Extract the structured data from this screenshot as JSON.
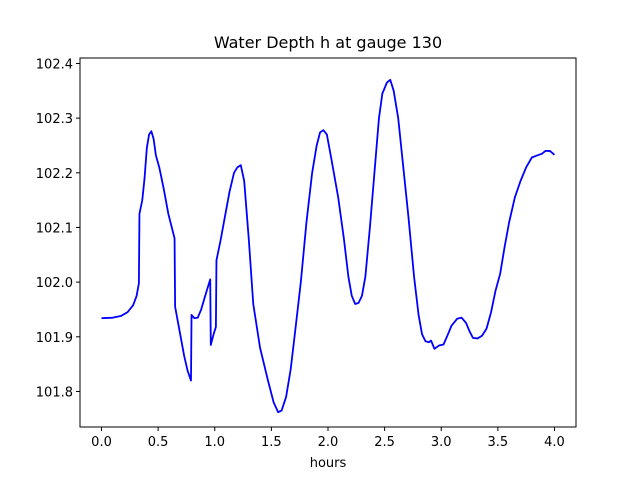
{
  "chart_data": {
    "type": "line",
    "title": "Water Depth h at gauge 130",
    "xlabel": "hours",
    "ylabel": "",
    "xlim": [
      -0.19,
      4.19
    ],
    "ylim": [
      101.735,
      102.41
    ],
    "xticks": [
      0.0,
      0.5,
      1.0,
      1.5,
      2.0,
      2.5,
      3.0,
      3.5,
      4.0
    ],
    "xtick_labels": [
      "0.0",
      "0.5",
      "1.0",
      "1.5",
      "2.0",
      "2.5",
      "3.0",
      "3.5",
      "4.0"
    ],
    "yticks": [
      101.8,
      101.9,
      102.0,
      102.1,
      102.2,
      102.3,
      102.4
    ],
    "ytick_labels": [
      "101.8",
      "101.9",
      "102.0",
      "102.1",
      "102.2",
      "102.3",
      "102.4"
    ],
    "grid": false,
    "series": [
      {
        "color": "#0000ff",
        "points": [
          [
            0.0,
            101.934
          ],
          [
            0.1,
            101.935
          ],
          [
            0.17,
            101.938
          ],
          [
            0.23,
            101.945
          ],
          [
            0.28,
            101.958
          ],
          [
            0.31,
            101.975
          ],
          [
            0.33,
            101.998
          ],
          [
            0.335,
            102.125
          ],
          [
            0.36,
            102.15
          ],
          [
            0.38,
            102.19
          ],
          [
            0.4,
            102.245
          ],
          [
            0.42,
            102.27
          ],
          [
            0.44,
            102.276
          ],
          [
            0.46,
            102.262
          ],
          [
            0.48,
            102.232
          ],
          [
            0.51,
            102.21
          ],
          [
            0.55,
            102.17
          ],
          [
            0.59,
            102.125
          ],
          [
            0.645,
            102.08
          ],
          [
            0.65,
            101.955
          ],
          [
            0.69,
            101.91
          ],
          [
            0.73,
            101.865
          ],
          [
            0.76,
            101.838
          ],
          [
            0.79,
            101.82
          ],
          [
            0.795,
            101.94
          ],
          [
            0.82,
            101.934
          ],
          [
            0.85,
            101.935
          ],
          [
            0.88,
            101.95
          ],
          [
            0.92,
            101.978
          ],
          [
            0.96,
            102.005
          ],
          [
            0.965,
            101.885
          ],
          [
            0.99,
            101.905
          ],
          [
            1.01,
            101.918
          ],
          [
            1.015,
            102.04
          ],
          [
            1.05,
            102.075
          ],
          [
            1.09,
            102.12
          ],
          [
            1.13,
            102.165
          ],
          [
            1.17,
            102.2
          ],
          [
            1.2,
            102.21
          ],
          [
            1.23,
            102.214
          ],
          [
            1.26,
            102.185
          ],
          [
            1.3,
            102.08
          ],
          [
            1.34,
            101.96
          ],
          [
            1.4,
            101.88
          ],
          [
            1.47,
            101.82
          ],
          [
            1.52,
            101.78
          ],
          [
            1.56,
            101.762
          ],
          [
            1.59,
            101.765
          ],
          [
            1.63,
            101.79
          ],
          [
            1.67,
            101.84
          ],
          [
            1.71,
            101.91
          ],
          [
            1.76,
            102.0
          ],
          [
            1.81,
            102.11
          ],
          [
            1.86,
            102.2
          ],
          [
            1.9,
            102.25
          ],
          [
            1.93,
            102.274
          ],
          [
            1.96,
            102.278
          ],
          [
            1.99,
            102.27
          ],
          [
            2.03,
            102.225
          ],
          [
            2.09,
            102.155
          ],
          [
            2.14,
            102.08
          ],
          [
            2.18,
            102.01
          ],
          [
            2.21,
            101.975
          ],
          [
            2.24,
            101.96
          ],
          [
            2.27,
            101.962
          ],
          [
            2.3,
            101.975
          ],
          [
            2.33,
            102.01
          ],
          [
            2.37,
            102.1
          ],
          [
            2.41,
            102.2
          ],
          [
            2.45,
            102.3
          ],
          [
            2.48,
            102.345
          ],
          [
            2.52,
            102.365
          ],
          [
            2.55,
            102.37
          ],
          [
            2.58,
            102.35
          ],
          [
            2.62,
            102.3
          ],
          [
            2.66,
            102.22
          ],
          [
            2.71,
            102.12
          ],
          [
            2.76,
            102.01
          ],
          [
            2.8,
            101.94
          ],
          [
            2.83,
            101.905
          ],
          [
            2.86,
            101.892
          ],
          [
            2.89,
            101.89
          ],
          [
            2.91,
            101.893
          ],
          [
            2.94,
            101.878
          ],
          [
            2.98,
            101.884
          ],
          [
            3.02,
            101.886
          ],
          [
            3.05,
            101.9
          ],
          [
            3.09,
            101.92
          ],
          [
            3.14,
            101.933
          ],
          [
            3.18,
            101.935
          ],
          [
            3.22,
            101.925
          ],
          [
            3.25,
            101.91
          ],
          [
            3.28,
            101.898
          ],
          [
            3.32,
            101.897
          ],
          [
            3.36,
            101.902
          ],
          [
            3.4,
            101.915
          ],
          [
            3.44,
            101.945
          ],
          [
            3.48,
            101.985
          ],
          [
            3.52,
            102.015
          ],
          [
            3.56,
            102.065
          ],
          [
            3.6,
            102.11
          ],
          [
            3.65,
            102.155
          ],
          [
            3.7,
            102.185
          ],
          [
            3.75,
            102.21
          ],
          [
            3.8,
            102.228
          ],
          [
            3.85,
            102.232
          ],
          [
            3.89,
            102.235
          ],
          [
            3.92,
            102.24
          ],
          [
            3.96,
            102.24
          ],
          [
            4.0,
            102.233
          ]
        ]
      }
    ]
  }
}
